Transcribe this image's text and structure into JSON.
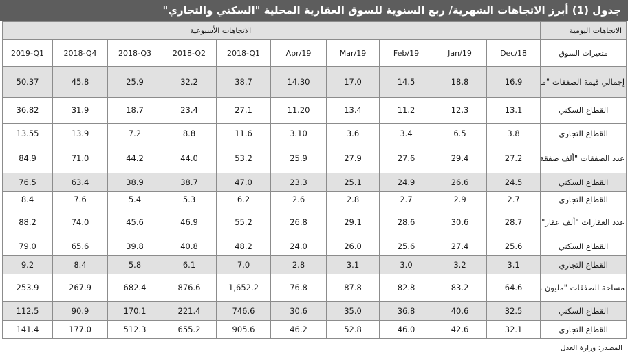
{
  "title": "جدول (1) أبرز الاتجاهات الشهرية/ ربع السنوية للسوق العقارية المحلية \"السكني والتجاري\"",
  "header": {
    "weekly_label": "الاتجاهات الأسبوعية",
    "daily_label": "الاتجاهات اليومية",
    "row_label_header": "متغيرات السوق",
    "columns": [
      "2019-Q1",
      "2018-Q4",
      "2018-Q3",
      "2018-Q2",
      "2018-Q1",
      "Apr/19",
      "Mar/19",
      "Feb/19",
      "Jan/19",
      "Dec/18"
    ]
  },
  "rows": [
    {
      "label": "إجمالي قيمة الصفقات \"مليار ريال\"",
      "values": [
        "50.37",
        "45.8",
        "25.9",
        "32.2",
        "38.7",
        "14.30",
        "17.0",
        "14.5",
        "18.8",
        "16.9"
      ]
    },
    {
      "label": "القطاع السكني",
      "values": [
        "36.82",
        "31.9",
        "18.7",
        "23.4",
        "27.1",
        "11.20",
        "13.4",
        "11.2",
        "12.3",
        "13.1"
      ]
    },
    {
      "label": "القطاع التجاري",
      "values": [
        "13.55",
        "13.9",
        "7.2",
        "8.8",
        "11.6",
        "3.10",
        "3.6",
        "3.4",
        "6.5",
        "3.8"
      ]
    },
    {
      "label": "عدد الصفقات \"ألف صفقة\"",
      "values": [
        "84.9",
        "71.0",
        "44.2",
        "44.0",
        "53.2",
        "25.9",
        "27.9",
        "27.6",
        "29.4",
        "27.2"
      ]
    },
    {
      "label": "القطاع السكني",
      "values": [
        "76.5",
        "63.4",
        "38.9",
        "38.7",
        "47.0",
        "23.3",
        "25.1",
        "24.9",
        "26.6",
        "24.5"
      ]
    },
    {
      "label": "القطاع التجاري",
      "values": [
        "8.4",
        "7.6",
        "5.4",
        "5.3",
        "6.2",
        "2.6",
        "2.8",
        "2.7",
        "2.9",
        "2.7"
      ]
    },
    {
      "label": "عدد العقارات \"ألف عقار\"",
      "values": [
        "88.2",
        "74.0",
        "45.6",
        "46.9",
        "55.2",
        "26.8",
        "29.1",
        "28.6",
        "30.6",
        "28.7"
      ]
    },
    {
      "label": "القطاع السكني",
      "values": [
        "79.0",
        "65.6",
        "39.8",
        "40.8",
        "48.2",
        "24.0",
        "26.0",
        "25.6",
        "27.4",
        "25.6"
      ]
    },
    {
      "label": "القطاع التجاري",
      "values": [
        "9.2",
        "8.4",
        "5.8",
        "6.1",
        "7.0",
        "2.8",
        "3.1",
        "3.0",
        "3.2",
        "3.1"
      ]
    },
    {
      "label": "مساحة الصفقات \"مليون متر مربع\"",
      "values": [
        "253.9",
        "267.9",
        "682.4",
        "876.6",
        "1,652.2",
        "76.8",
        "87.8",
        "82.8",
        "83.2",
        "64.6"
      ]
    },
    {
      "label": "القطاع السكني",
      "values": [
        "112.5",
        "90.9",
        "170.1",
        "221.4",
        "746.6",
        "30.6",
        "35.0",
        "36.8",
        "40.6",
        "32.5"
      ]
    },
    {
      "label": "القطاع التجاري",
      "values": [
        "141.4",
        "177.0",
        "512.3",
        "655.2",
        "905.6",
        "46.2",
        "52.8",
        "46.0",
        "42.6",
        "32.1"
      ]
    }
  ],
  "source": "المصدر: وزارة العدل"
}
